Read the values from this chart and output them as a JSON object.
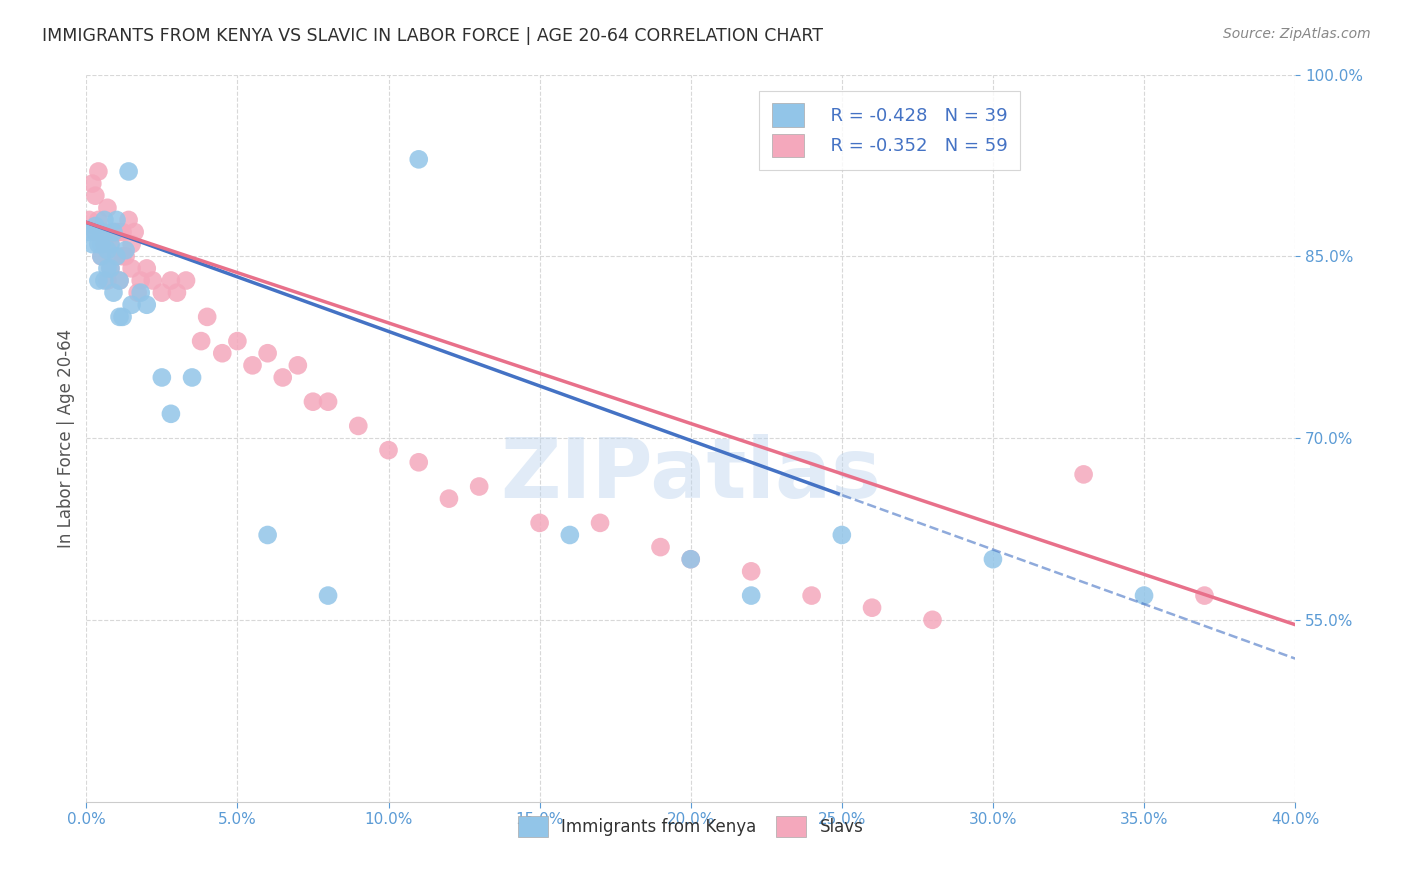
{
  "title": "IMMIGRANTS FROM KENYA VS SLAVIC IN LABOR FORCE | AGE 20-64 CORRELATION CHART",
  "source": "Source: ZipAtlas.com",
  "ylabel": "In Labor Force | Age 20-64",
  "xlim": [
    0.0,
    0.4
  ],
  "ylim": [
    0.4,
    1.0
  ],
  "xticks": [
    0.0,
    0.05,
    0.1,
    0.15,
    0.2,
    0.25,
    0.3,
    0.35,
    0.4
  ],
  "yticks": [
    0.55,
    0.7,
    0.85,
    1.0
  ],
  "yticks_right": [
    1.0,
    0.85,
    0.7,
    0.55
  ],
  "kenya_color": "#92C5E8",
  "slavic_color": "#F4A8BC",
  "kenya_line_color": "#4472C4",
  "slavic_line_color": "#E8708A",
  "kenya_R": -0.428,
  "kenya_N": 39,
  "slavic_R": -0.352,
  "slavic_N": 59,
  "legend_label_kenya": "Immigrants from Kenya",
  "legend_label_slavic": "Slavs",
  "watermark_text": "ZIPatlas",
  "kenya_x": [
    0.001,
    0.002,
    0.003,
    0.003,
    0.004,
    0.004,
    0.005,
    0.005,
    0.005,
    0.006,
    0.006,
    0.007,
    0.007,
    0.008,
    0.008,
    0.009,
    0.009,
    0.01,
    0.01,
    0.011,
    0.011,
    0.012,
    0.013,
    0.014,
    0.015,
    0.018,
    0.02,
    0.025,
    0.028,
    0.035,
    0.06,
    0.08,
    0.11,
    0.16,
    0.2,
    0.22,
    0.25,
    0.3,
    0.35
  ],
  "kenya_y": [
    0.87,
    0.86,
    0.875,
    0.87,
    0.83,
    0.86,
    0.86,
    0.87,
    0.85,
    0.88,
    0.83,
    0.84,
    0.855,
    0.86,
    0.84,
    0.87,
    0.82,
    0.85,
    0.88,
    0.8,
    0.83,
    0.8,
    0.855,
    0.92,
    0.81,
    0.82,
    0.81,
    0.75,
    0.72,
    0.75,
    0.62,
    0.57,
    0.93,
    0.62,
    0.6,
    0.57,
    0.62,
    0.6,
    0.57
  ],
  "slavic_x": [
    0.001,
    0.002,
    0.003,
    0.003,
    0.004,
    0.004,
    0.005,
    0.005,
    0.006,
    0.006,
    0.007,
    0.007,
    0.008,
    0.008,
    0.009,
    0.01,
    0.01,
    0.011,
    0.011,
    0.012,
    0.012,
    0.013,
    0.014,
    0.015,
    0.015,
    0.016,
    0.017,
    0.018,
    0.02,
    0.022,
    0.025,
    0.028,
    0.03,
    0.033,
    0.038,
    0.04,
    0.045,
    0.05,
    0.055,
    0.06,
    0.065,
    0.07,
    0.075,
    0.08,
    0.09,
    0.1,
    0.11,
    0.12,
    0.13,
    0.15,
    0.17,
    0.19,
    0.2,
    0.22,
    0.24,
    0.26,
    0.28,
    0.33,
    0.37
  ],
  "slavic_y": [
    0.88,
    0.91,
    0.87,
    0.9,
    0.92,
    0.88,
    0.85,
    0.87,
    0.87,
    0.86,
    0.89,
    0.83,
    0.86,
    0.84,
    0.87,
    0.85,
    0.87,
    0.87,
    0.83,
    0.85,
    0.87,
    0.85,
    0.88,
    0.86,
    0.84,
    0.87,
    0.82,
    0.83,
    0.84,
    0.83,
    0.82,
    0.83,
    0.82,
    0.83,
    0.78,
    0.8,
    0.77,
    0.78,
    0.76,
    0.77,
    0.75,
    0.76,
    0.73,
    0.73,
    0.71,
    0.69,
    0.68,
    0.65,
    0.66,
    0.63,
    0.63,
    0.61,
    0.6,
    0.59,
    0.57,
    0.56,
    0.55,
    0.67,
    0.57
  ],
  "background_color": "#FFFFFF",
  "grid_color": "#D8D8D8",
  "axis_label_color": "#5B9BD5",
  "title_color": "#2F2F2F",
  "kenya_line_end_x": 0.25,
  "slavic_line_end_x": 0.4,
  "kenya_line_intercept": 0.878,
  "kenya_line_slope": -0.9,
  "slavic_line_intercept": 0.878,
  "slavic_line_slope": -0.83
}
